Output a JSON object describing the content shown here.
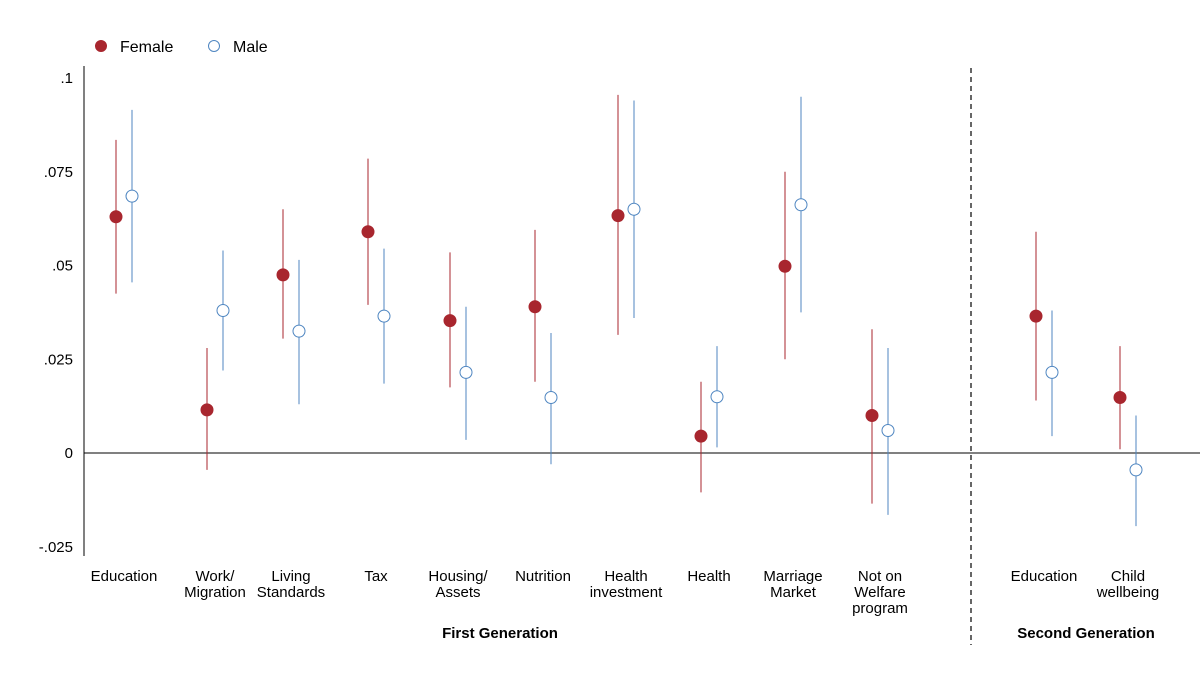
{
  "chart_data": {
    "type": "scatter",
    "title": "",
    "xlabel": "",
    "ylabel": "",
    "ylim": [
      -0.028,
      0.103
    ],
    "yticks": [
      {
        "value": 0.1,
        "label": ".1"
      },
      {
        "value": 0.075,
        "label": ".075"
      },
      {
        "value": 0.05,
        "label": ".05"
      },
      {
        "value": 0.025,
        "label": ".025"
      },
      {
        "value": 0,
        "label": "0"
      },
      {
        "value": -0.025,
        "label": "-.025"
      }
    ],
    "legend": {
      "position": "top-left",
      "entries": [
        {
          "name": "Female",
          "marker": "filled-circle"
        },
        {
          "name": "Male",
          "marker": "hollow-circle"
        }
      ]
    },
    "colors": {
      "Female": "#a8262e",
      "Male": "#4f86c1",
      "axis": "#000000"
    },
    "zero_line": true,
    "grid": false,
    "categories": [
      {
        "lines": [
          "Education"
        ]
      },
      {
        "lines": [
          "Work/",
          "Migration"
        ]
      },
      {
        "lines": [
          "Living",
          "Standards"
        ]
      },
      {
        "lines": [
          "Tax"
        ]
      },
      {
        "lines": [
          "Housing/",
          "Assets"
        ]
      },
      {
        "lines": [
          "Nutrition"
        ]
      },
      {
        "lines": [
          "Health",
          "investment"
        ]
      },
      {
        "lines": [
          "Health"
        ]
      },
      {
        "lines": [
          "Marriage",
          "Market"
        ]
      },
      {
        "lines": [
          "Not on",
          "Welfare",
          "program"
        ]
      },
      {
        "lines": [
          "Education"
        ]
      },
      {
        "lines": [
          "Child",
          "wellbeing"
        ]
      }
    ],
    "groups": [
      {
        "label": "First Generation",
        "categories": [
          0,
          1,
          2,
          3,
          4,
          5,
          6,
          7,
          8,
          9
        ]
      },
      {
        "label": "Second Generation",
        "categories": [
          10,
          11
        ]
      }
    ],
    "series": [
      {
        "name": "Female",
        "estimate": [
          0.063,
          0.0115,
          0.0475,
          0.059,
          0.0353,
          0.039,
          0.0633,
          0.0045,
          0.0498,
          0.01,
          0.0365,
          0.0148
        ],
        "ci_low": [
          0.0425,
          -0.0045,
          0.0305,
          0.0395,
          0.0175,
          0.019,
          0.0315,
          -0.0105,
          0.025,
          -0.0135,
          0.014,
          0.001
        ],
        "ci_high": [
          0.0835,
          0.028,
          0.065,
          0.0785,
          0.0535,
          0.0595,
          0.0955,
          0.019,
          0.075,
          0.033,
          0.059,
          0.0285
        ]
      },
      {
        "name": "Male",
        "estimate": [
          0.0685,
          0.038,
          0.0325,
          0.0365,
          0.0215,
          0.0148,
          0.065,
          0.015,
          0.0662,
          0.006,
          0.0215,
          -0.0045
        ],
        "ci_low": [
          0.0455,
          0.022,
          0.013,
          0.0185,
          0.0035,
          -0.003,
          0.036,
          0.0015,
          0.0375,
          -0.0165,
          0.0045,
          -0.0195
        ],
        "ci_high": [
          0.0915,
          0.054,
          0.0515,
          0.0545,
          0.039,
          0.032,
          0.094,
          0.0285,
          0.095,
          0.028,
          0.038,
          0.01
        ]
      }
    ]
  }
}
